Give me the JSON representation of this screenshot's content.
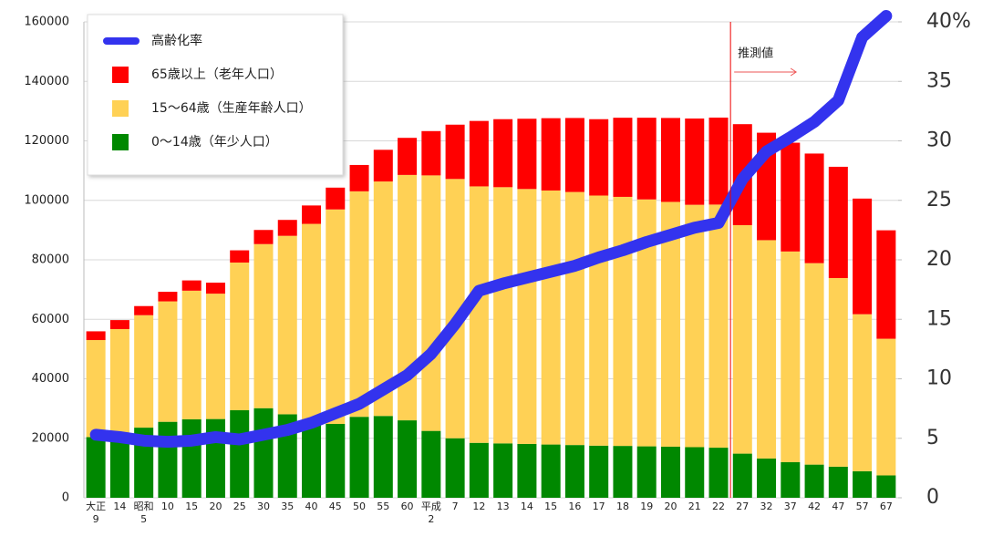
{
  "chart_data": {
    "type": "bar",
    "categories": [
      "大正\n9",
      "14",
      "昭和\n5",
      "10",
      "15",
      "20",
      "25",
      "30",
      "35",
      "40",
      "45",
      "50",
      "55",
      "60",
      "平成\n2",
      "7",
      "12",
      "13",
      "14",
      "15",
      "16",
      "17",
      "18",
      "19",
      "20",
      "21",
      "22",
      "27",
      "32",
      "37",
      "42",
      "47",
      "57",
      "67"
    ],
    "series": [
      {
        "name": "高齢化率",
        "type": "line",
        "axis": "y2",
        "color": "#3333ee",
        "values": [
          5.3,
          5.1,
          4.8,
          4.7,
          4.8,
          5.1,
          4.9,
          5.3,
          5.7,
          6.3,
          7.1,
          7.9,
          9.1,
          10.3,
          12.1,
          14.6,
          17.4,
          18.0,
          18.5,
          19.0,
          19.5,
          20.2,
          20.8,
          21.5,
          22.1,
          22.7,
          23.1,
          26.8,
          29.1,
          30.3,
          31.6,
          33.4,
          38.7,
          40.5
        ]
      },
      {
        "name": "65歳以上（老年人口）",
        "type": "bar",
        "color": "#ff0000",
        "values": [
          2941,
          3021,
          3064,
          3225,
          3454,
          3700,
          4109,
          4747,
          5350,
          6181,
          7331,
          8865,
          10647,
          12468,
          14895,
          18261,
          22005,
          22869,
          23628,
          24311,
          24876,
          25672,
          26604,
          27464,
          28216,
          29005,
          29246,
          33952,
          36124,
          36573,
          36849,
          37407,
          38878,
          36463
        ]
      },
      {
        "name": "15〜64歳（生産年齢人口）",
        "type": "bar",
        "color": "#ffd155",
        "values": [
          32605,
          34792,
          37807,
          40484,
          43252,
          42150,
          49658,
          55167,
          60002,
          66928,
          72119,
          75807,
          78835,
          82506,
          85904,
          87165,
          86220,
          86139,
          85706,
          85404,
          85077,
          84092,
          83731,
          83015,
          82300,
          81493,
          81735,
          76818,
          73408,
          70845,
          67730,
          63430,
          52784,
          45951
        ]
      },
      {
        "name": "0〜14歳（年少人口）",
        "type": "bar",
        "color": "#008800",
        "values": [
          20416,
          21924,
          23579,
          25545,
          26369,
          26477,
          29428,
          30123,
          28067,
          25166,
          24823,
          27221,
          27507,
          26033,
          22486,
          20014,
          18472,
          18283,
          18102,
          17905,
          17734,
          17521,
          17435,
          17293,
          17176,
          17011,
          16839,
          14841,
          13201,
          11956,
          11150,
          10446,
          8930,
          7516
        ]
      }
    ],
    "ylim": [
      0,
      160000
    ],
    "yticks": [
      0,
      20000,
      40000,
      60000,
      80000,
      100000,
      120000,
      140000,
      160000
    ],
    "y2lim": [
      0,
      40
    ],
    "y2ticks": [
      0,
      5,
      10,
      15,
      20,
      25,
      30,
      35,
      {
        "value": 40,
        "label": "40%"
      }
    ],
    "grid": true,
    "legend": "upper-left",
    "annotation": "推測値"
  }
}
